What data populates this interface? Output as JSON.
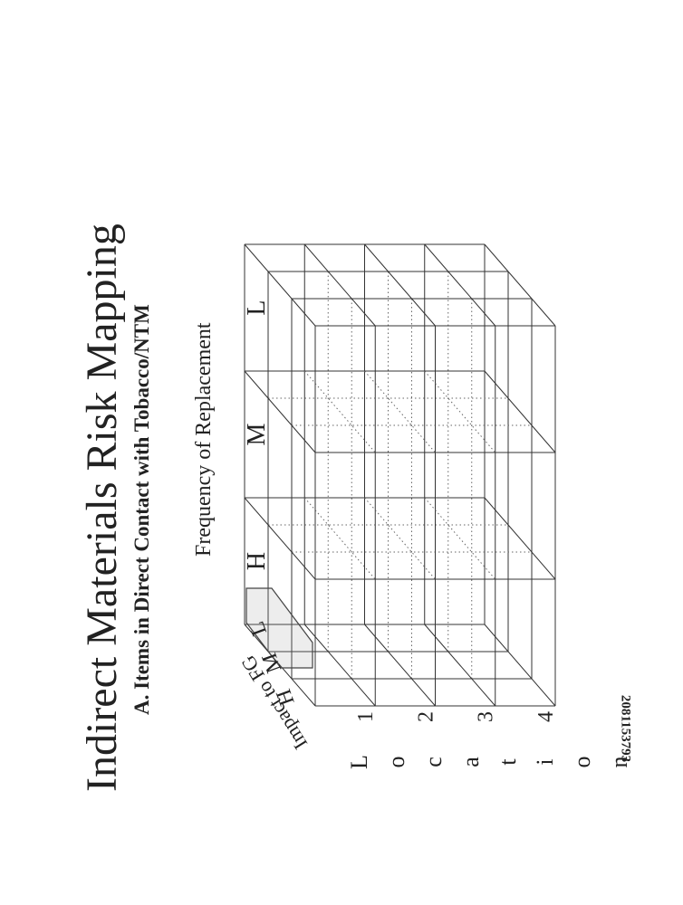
{
  "header": {
    "title": "Indirect Materials Risk Mapping",
    "subtitle": "A. Items in Direct Contact with Tobacco/NTM"
  },
  "diagram": {
    "frequency_title": "Frequency of Replacement",
    "frequency_levels": [
      "H",
      "M",
      "L"
    ],
    "impact_title": "Impact to FG",
    "impact_levels": [
      "H",
      "M",
      "L"
    ],
    "location_letters": [
      "L",
      "o",
      "c",
      "a",
      "t",
      "i",
      "o",
      "n"
    ],
    "location_levels": [
      "1",
      "2",
      "3",
      "4"
    ]
  },
  "footer": {
    "document_id": "2081153793"
  }
}
